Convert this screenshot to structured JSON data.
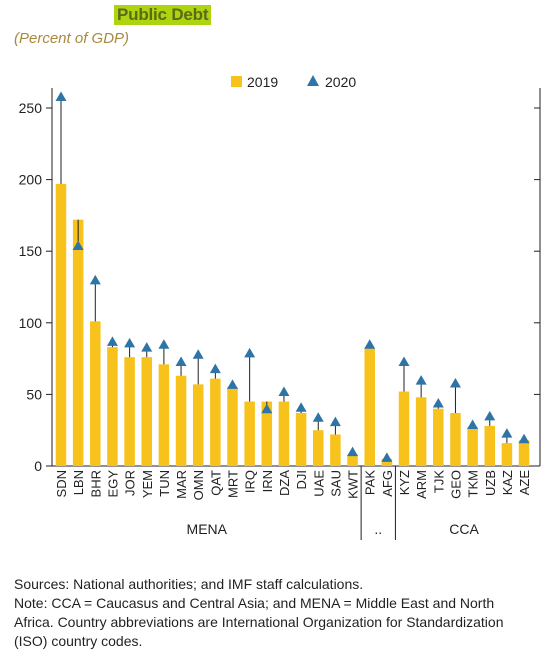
{
  "chart_data": {
    "type": "bar",
    "title": "Public Debt",
    "subtitle": "(Percent of GDP)",
    "legend_position": "top-center",
    "ylim": [
      0,
      250
    ],
    "yticks": [
      "0",
      "50",
      "100",
      "150",
      "200",
      "250"
    ],
    "colors": {
      "bar": "#f7c21b",
      "marker": "#2f74a6",
      "connector": "#231f20"
    },
    "series": [
      {
        "name": "2019",
        "kind": "bar"
      },
      {
        "name": "2020",
        "kind": "marker"
      }
    ],
    "categories": [
      "SDN",
      "LBN",
      "BHR",
      "EGY",
      "JOR",
      "YEM",
      "TUN",
      "MAR",
      "OMN",
      "QAT",
      "MRT",
      "IRQ",
      "IRN",
      "DZA",
      "DJI",
      "UAE",
      "SAU",
      "KWT",
      "PAK",
      "AFG",
      "KYZ",
      "ARM",
      "TJK",
      "GEO",
      "TKM",
      "UZB",
      "KAZ",
      "AZE"
    ],
    "values_2019": [
      197,
      172,
      101,
      83,
      76,
      76,
      71,
      63,
      57,
      61,
      55,
      45,
      45,
      45,
      37,
      25,
      22,
      8,
      82,
      5,
      52,
      48,
      40,
      37,
      27,
      28,
      16,
      18
    ],
    "values_2020": [
      258,
      154,
      130,
      87,
      86,
      83,
      85,
      73,
      78,
      68,
      57,
      79,
      40,
      52,
      41,
      34,
      31,
      10,
      85,
      6,
      73,
      60,
      44,
      58,
      29,
      35,
      23,
      19
    ],
    "groups": [
      {
        "label": "MENA",
        "from": 0,
        "to": 17
      },
      {
        "label": "..",
        "from": 18,
        "to": 19
      },
      {
        "label": "CCA",
        "from": 20,
        "to": 27
      }
    ]
  },
  "notes": {
    "line1": "Sources: National authorities; and IMF staff calculations.",
    "line2": "Note: CCA = Caucasus and Central Asia; and MENA = Middle East and North",
    "line3": "Africa. Country abbreviations are International Organization for Standardization",
    "line4": "(ISO) country codes."
  }
}
